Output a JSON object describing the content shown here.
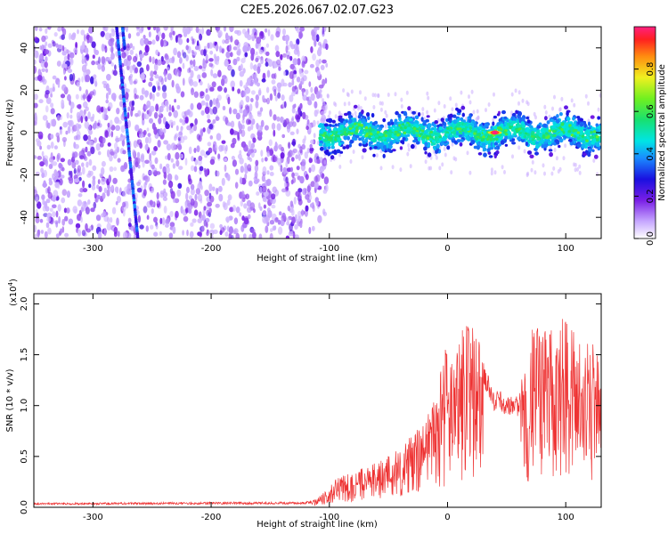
{
  "title": "C2E5.2026.067.02.07.G23",
  "chart_data": [
    {
      "type": "heatmap",
      "xlabel": "Height of straight line (km)",
      "ylabel": "Frequency (Hz)",
      "xlim": [
        -350,
        130
      ],
      "ylim": [
        -50,
        50
      ],
      "xticks": [
        -300,
        -200,
        -100,
        0,
        100
      ],
      "yticks": [
        -40,
        -20,
        0,
        20,
        40
      ],
      "colorbar": {
        "label": "Normalized spectral amplitude",
        "range": [
          0.0,
          1.0
        ],
        "ticks": [
          0.0,
          0.2,
          0.4,
          0.6,
          0.8
        ],
        "tick_labels": [
          "0.0",
          "0.2",
          "0.4",
          "0.6",
          "0.8"
        ]
      },
      "noise_region_x": [
        -350,
        -110
      ],
      "diagonal_track": {
        "x_start": -280,
        "x_end": -262,
        "y_start": 50,
        "y_end": -50
      },
      "signal_band_center_hz": 0,
      "signal_band_halfwidth_hz": 8,
      "peak": {
        "x": 40,
        "y": 0,
        "value": 1.0
      }
    },
    {
      "type": "line",
      "xlabel": "Height of straight line (km)",
      "ylabel": "SNR (10 * v/v)",
      "multiplier_label": "(x10",
      "multiplier_exp": "4",
      "multiplier_close": ")",
      "xlim": [
        -350,
        130
      ],
      "ylim": [
        0,
        2.1
      ],
      "xticks": [
        -300,
        -200,
        -100,
        0,
        100
      ],
      "yticks": [
        0.0,
        0.5,
        1.0,
        1.5,
        2.0
      ],
      "ytick_labels": [
        "0.0",
        "0.5",
        "1.0",
        "1.5",
        "2.0"
      ],
      "color": "#ee3333",
      "envelope": [
        {
          "x": -350,
          "y": 0.04
        },
        {
          "x": -120,
          "y": 0.05
        },
        {
          "x": -110,
          "y": 0.08
        },
        {
          "x": -90,
          "y": 0.3
        },
        {
          "x": -60,
          "y": 0.4
        },
        {
          "x": -40,
          "y": 0.55
        },
        {
          "x": -20,
          "y": 0.75
        },
        {
          "x": -10,
          "y": 1.0
        },
        {
          "x": 0,
          "y": 1.5
        },
        {
          "x": 20,
          "y": 1.7
        },
        {
          "x": 40,
          "y": 1.1
        },
        {
          "x": 60,
          "y": 1.05
        },
        {
          "x": 70,
          "y": 1.6
        },
        {
          "x": 100,
          "y": 1.7
        },
        {
          "x": 130,
          "y": 1.4
        }
      ]
    }
  ]
}
